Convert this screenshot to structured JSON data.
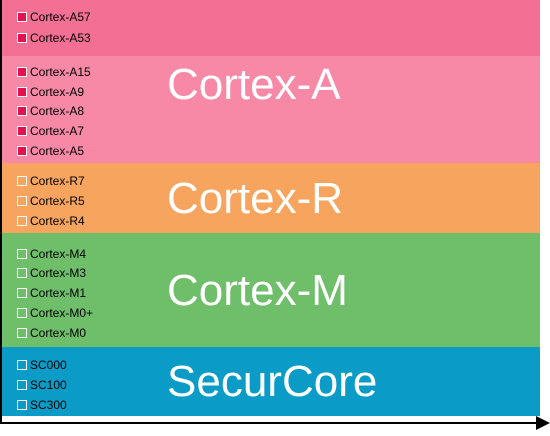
{
  "colors": {
    "cortex_a_top_band": "#f36f93",
    "cortex_a_band": "#f889a6",
    "cortex_r_band": "#f7a55e",
    "cortex_m_band": "#6fbe6a",
    "securcore_band": "#0a9cc7",
    "cortex_a_box": "#e3124f",
    "cortex_r_box": "#f39233",
    "cortex_m_box": "#47ad47",
    "securcore_box": "#0d8bb6",
    "title_text": "#ffffff",
    "axis": "#000000"
  },
  "bands": {
    "cortex_a_top": {
      "items": [
        "Cortex-A57",
        "Cortex-A53"
      ]
    },
    "cortex_a": {
      "title": "Cortex-A",
      "items": [
        "Cortex-A15",
        "Cortex-A9",
        "Cortex-A8",
        "Cortex-A7",
        "Cortex-A5"
      ]
    },
    "cortex_r": {
      "title": "Cortex-R",
      "items": [
        "Cortex-R7",
        "Cortex-R5",
        "Cortex-R4"
      ]
    },
    "cortex_m": {
      "title": "Cortex-M",
      "items": [
        "Cortex-M4",
        "Cortex-M3",
        "Cortex-M1",
        "Cortex-M0+",
        "Cortex-M0"
      ]
    },
    "securcore": {
      "title": "SecurCore",
      "items": [
        "SC000",
        "SC100",
        "SC300"
      ]
    }
  },
  "icons": {
    "axis_arrow": "right-arrow-icon"
  }
}
